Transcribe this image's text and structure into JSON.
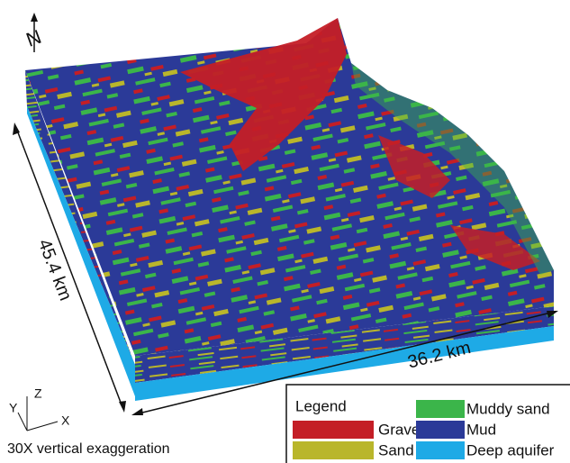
{
  "figure": {
    "north_label": "N",
    "width_label": "45.4 km",
    "length_label": "36.2 km",
    "axes": {
      "z": "Z",
      "y": "Y",
      "x": "X"
    },
    "exaggeration": "30X vertical exaggeration",
    "legend": {
      "title": "Legend",
      "items": [
        {
          "name": "Gravel",
          "color": "#c41e26"
        },
        {
          "name": "Sand",
          "color": "#b9b62b"
        },
        {
          "name": "Muddy sand",
          "color": "#3bb54a"
        },
        {
          "name": "Mud",
          "color": "#2b3a98"
        },
        {
          "name": "Deep aquifer",
          "color": "#1eaae6"
        }
      ]
    }
  }
}
